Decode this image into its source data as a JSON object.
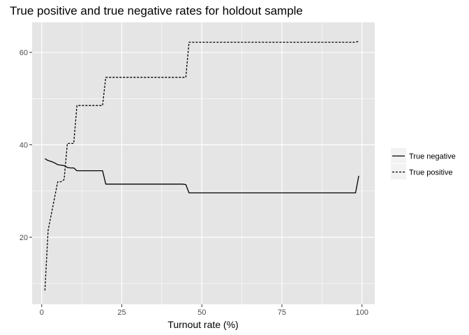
{
  "chart_data": {
    "type": "line",
    "title": "True positive and true negative rates for holdout sample",
    "xlabel": "Turnout rate (%)",
    "ylabel": "",
    "xlim": [
      -3,
      104
    ],
    "ylim": [
      5.5,
      66.5
    ],
    "x_ticks": [
      0,
      25,
      50,
      75,
      100
    ],
    "y_ticks": [
      20,
      40,
      60
    ],
    "grid": true,
    "panel_background": "#e5e5e5",
    "grid_color": "#ffffff",
    "legend_position": "right",
    "series": [
      {
        "name": "True negative",
        "line_style": "solid",
        "color": "#000000",
        "x": [
          1,
          2,
          3,
          4,
          5,
          6,
          7,
          8,
          9,
          10,
          11,
          12,
          13,
          14,
          15,
          16,
          17,
          18,
          19,
          20,
          44,
          45,
          46,
          98,
          99
        ],
        "y": [
          37.0,
          36.6,
          36.4,
          36.1,
          35.7,
          35.6,
          35.5,
          35.1,
          35.0,
          35.0,
          34.4,
          34.4,
          34.4,
          34.4,
          34.4,
          34.4,
          34.4,
          34.4,
          34.4,
          31.5,
          31.5,
          31.4,
          29.6,
          29.6,
          33.3
        ]
      },
      {
        "name": "True positive",
        "line_style": "dashed",
        "color": "#000000",
        "x": [
          1,
          2,
          3,
          4,
          5,
          6,
          7,
          8,
          9,
          10,
          11,
          12,
          13,
          14,
          15,
          16,
          17,
          18,
          19,
          20,
          44,
          45,
          46,
          98,
          99
        ],
        "y": [
          8.5,
          21.5,
          25.0,
          28.5,
          32.0,
          32.0,
          32.5,
          40.3,
          40.3,
          40.3,
          48.5,
          48.5,
          48.5,
          48.5,
          48.5,
          48.5,
          48.5,
          48.5,
          48.5,
          54.6,
          54.6,
          54.6,
          62.2,
          62.2,
          62.4
        ]
      }
    ]
  }
}
